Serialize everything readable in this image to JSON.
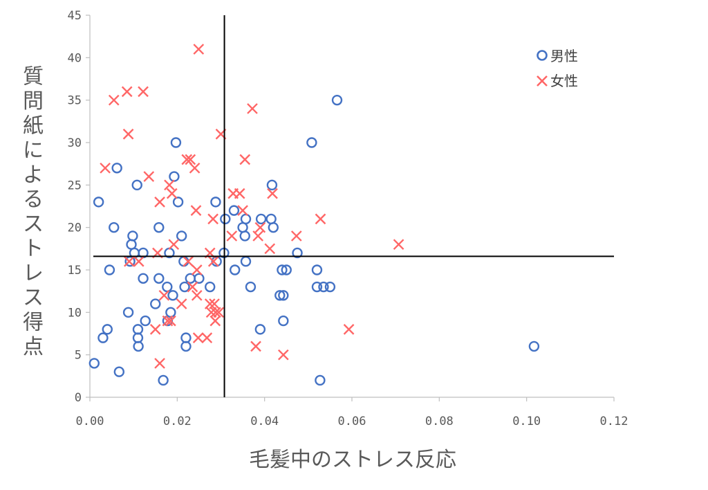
{
  "chart_data": {
    "type": "scatter",
    "xlabel": "毛髪中のストレス反応",
    "ylabel": "質問紙によるストレス得点",
    "xlim": [
      0,
      0.12
    ],
    "ylim": [
      0,
      45
    ],
    "x_ticks": [
      "0.00",
      "0.02",
      "0.04",
      "0.06",
      "0.08",
      "0.10",
      "0.12"
    ],
    "y_ticks": [
      "0",
      "5",
      "10",
      "15",
      "20",
      "25",
      "30",
      "35",
      "40",
      "45"
    ],
    "grid": false,
    "legend_position": "top-right",
    "reference_lines": {
      "x": 0.0308,
      "y": 16.6
    },
    "series": [
      {
        "name": "男性",
        "marker": "circle",
        "color": "#4472C4",
        "points": [
          [
            0.001,
            4
          ],
          [
            0.002,
            23
          ],
          [
            0.003,
            7
          ],
          [
            0.004,
            8
          ],
          [
            0.0045,
            15
          ],
          [
            0.0055,
            20
          ],
          [
            0.0062,
            27
          ],
          [
            0.0067,
            3
          ],
          [
            0.0088,
            10
          ],
          [
            0.0092,
            16
          ],
          [
            0.0095,
            18
          ],
          [
            0.0098,
            19
          ],
          [
            0.0102,
            17
          ],
          [
            0.0108,
            25
          ],
          [
            0.011,
            7
          ],
          [
            0.011,
            8
          ],
          [
            0.0111,
            6
          ],
          [
            0.0122,
            17
          ],
          [
            0.0122,
            14
          ],
          [
            0.0127,
            9
          ],
          [
            0.015,
            11
          ],
          [
            0.0158,
            14
          ],
          [
            0.0158,
            20
          ],
          [
            0.0168,
            2
          ],
          [
            0.0177,
            13
          ],
          [
            0.0178,
            9
          ],
          [
            0.0182,
            17
          ],
          [
            0.0185,
            10
          ],
          [
            0.019,
            12
          ],
          [
            0.0193,
            26
          ],
          [
            0.0197,
            30
          ],
          [
            0.0202,
            23
          ],
          [
            0.021,
            19
          ],
          [
            0.0215,
            16
          ],
          [
            0.0217,
            13
          ],
          [
            0.022,
            7
          ],
          [
            0.022,
            6
          ],
          [
            0.023,
            14
          ],
          [
            0.025,
            14
          ],
          [
            0.0275,
            13
          ],
          [
            0.0288,
            23
          ],
          [
            0.029,
            16
          ],
          [
            0.0307,
            17
          ],
          [
            0.031,
            21
          ],
          [
            0.033,
            22
          ],
          [
            0.0332,
            15
          ],
          [
            0.035,
            20
          ],
          [
            0.0355,
            19
          ],
          [
            0.0357,
            21
          ],
          [
            0.0357,
            16
          ],
          [
            0.0368,
            13
          ],
          [
            0.039,
            8
          ],
          [
            0.0392,
            21
          ],
          [
            0.0415,
            21
          ],
          [
            0.0417,
            25
          ],
          [
            0.042,
            20
          ],
          [
            0.0435,
            12
          ],
          [
            0.044,
            15
          ],
          [
            0.0443,
            12
          ],
          [
            0.0443,
            9
          ],
          [
            0.045,
            15
          ],
          [
            0.0475,
            17
          ],
          [
            0.0508,
            30
          ],
          [
            0.052,
            15
          ],
          [
            0.052,
            13
          ],
          [
            0.0527,
            2
          ],
          [
            0.0535,
            13
          ],
          [
            0.055,
            13
          ],
          [
            0.0566,
            35
          ],
          [
            0.1017,
            6
          ]
        ]
      },
      {
        "name": "女性",
        "marker": "x",
        "color": "#FF6666",
        "points": [
          [
            0.0035,
            27
          ],
          [
            0.0055,
            35
          ],
          [
            0.0085,
            36
          ],
          [
            0.0088,
            31
          ],
          [
            0.009,
            16
          ],
          [
            0.0112,
            16
          ],
          [
            0.0122,
            36
          ],
          [
            0.0135,
            26
          ],
          [
            0.015,
            8
          ],
          [
            0.0155,
            17
          ],
          [
            0.016,
            4
          ],
          [
            0.016,
            23
          ],
          [
            0.017,
            12
          ],
          [
            0.0178,
            9
          ],
          [
            0.0182,
            25
          ],
          [
            0.0185,
            9
          ],
          [
            0.0188,
            24
          ],
          [
            0.0192,
            18
          ],
          [
            0.021,
            11
          ],
          [
            0.0222,
            28
          ],
          [
            0.0225,
            16
          ],
          [
            0.023,
            28
          ],
          [
            0.0235,
            13
          ],
          [
            0.024,
            27
          ],
          [
            0.0243,
            22
          ],
          [
            0.0245,
            15
          ],
          [
            0.0245,
            12
          ],
          [
            0.0248,
            7
          ],
          [
            0.0249,
            41
          ],
          [
            0.0268,
            7
          ],
          [
            0.0275,
            11
          ],
          [
            0.0275,
            17
          ],
          [
            0.0278,
            10
          ],
          [
            0.0282,
            21
          ],
          [
            0.0283,
            16
          ],
          [
            0.0285,
            11
          ],
          [
            0.0287,
            9
          ],
          [
            0.0288,
            10
          ],
          [
            0.0295,
            10
          ],
          [
            0.03,
            31
          ],
          [
            0.0325,
            19
          ],
          [
            0.0328,
            24
          ],
          [
            0.0343,
            24
          ],
          [
            0.035,
            22
          ],
          [
            0.0355,
            28
          ],
          [
            0.0372,
            34
          ],
          [
            0.038,
            6
          ],
          [
            0.0385,
            19
          ],
          [
            0.039,
            20
          ],
          [
            0.0412,
            17.5
          ],
          [
            0.0418,
            24
          ],
          [
            0.0443,
            5
          ],
          [
            0.0473,
            19
          ],
          [
            0.0528,
            21
          ],
          [
            0.0593,
            8
          ],
          [
            0.0707,
            18
          ]
        ]
      }
    ]
  }
}
